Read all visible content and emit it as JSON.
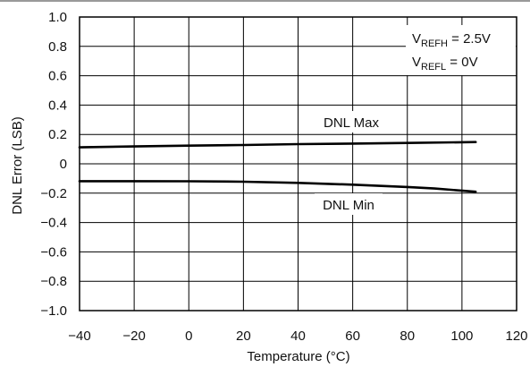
{
  "chart_data": {
    "type": "line",
    "title": "",
    "xlabel": "Temperature (°C)",
    "ylabel": "DNL Error (LSB)",
    "xlim": [
      -40,
      120
    ],
    "ylim": [
      -1.0,
      1.0
    ],
    "x_ticks": [
      "−40",
      "−20",
      "0",
      "20",
      "40",
      "60",
      "80",
      "100",
      "120"
    ],
    "y_ticks": [
      "1.0",
      "0.8",
      "0.6",
      "0.4",
      "0.2",
      "0",
      "−0.2",
      "−0.4",
      "−0.6",
      "−0.8",
      "−1.0"
    ],
    "grid": true,
    "series": [
      {
        "name": "DNL Max",
        "color": "#000000",
        "x": [
          -40,
          -20,
          0,
          20,
          40,
          60,
          80,
          105
        ],
        "y": [
          0.112,
          0.118,
          0.124,
          0.128,
          0.134,
          0.138,
          0.142,
          0.148
        ]
      },
      {
        "name": "DNL Min",
        "color": "#000000",
        "x": [
          -40,
          -20,
          0,
          20,
          40,
          60,
          80,
          90,
          105
        ],
        "y": [
          -0.118,
          -0.118,
          -0.119,
          -0.122,
          -0.13,
          -0.142,
          -0.158,
          -0.168,
          -0.19
        ]
      }
    ],
    "annotations": {
      "vrefh_main": "V",
      "vrefh_sub": "REFH",
      "vrefh_value": " = 2.5V",
      "vrefl_main": "V",
      "vrefl_sub": "REFL",
      "vrefl_value": " = 0V"
    }
  }
}
